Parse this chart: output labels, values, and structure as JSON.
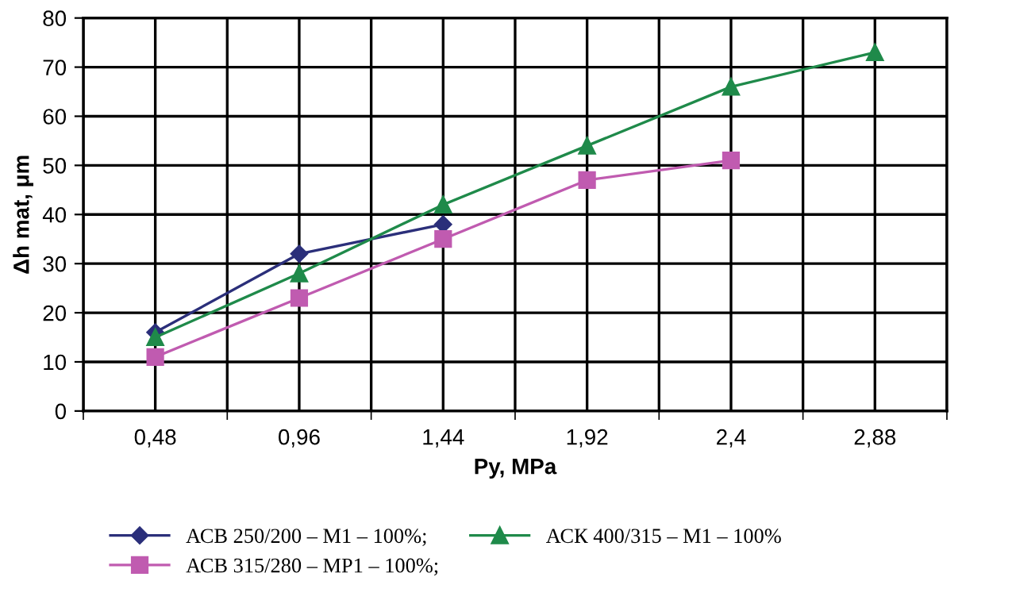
{
  "chart_data": {
    "type": "line",
    "xlabel": "Py, MPa",
    "ylabel": "Δh mat, μm",
    "categories": [
      "0,48",
      "0,96",
      "1,44",
      "1,92",
      "2,4",
      "2,88"
    ],
    "series": [
      {
        "name": "АСВ 250/200 – М1 – 100%;",
        "color": "#2b2f7a",
        "marker": "diamond",
        "values": [
          16,
          32,
          38,
          null,
          null,
          null
        ]
      },
      {
        "name": "АСВ 315/280 – МР1 – 100%;",
        "color": "#c05bb0",
        "marker": "square",
        "values": [
          11,
          23,
          35,
          47,
          51,
          null
        ]
      },
      {
        "name": "АСК 400/315 – М1 – 100%",
        "color": "#1f8a4a",
        "marker": "triangle",
        "values": [
          15,
          28,
          42,
          54,
          66,
          73
        ]
      }
    ],
    "ylim": [
      0,
      80
    ],
    "yticks": [
      0,
      10,
      20,
      30,
      40,
      50,
      60,
      70,
      80
    ],
    "grid": true,
    "legend": "bottom",
    "line_style": "solid"
  }
}
